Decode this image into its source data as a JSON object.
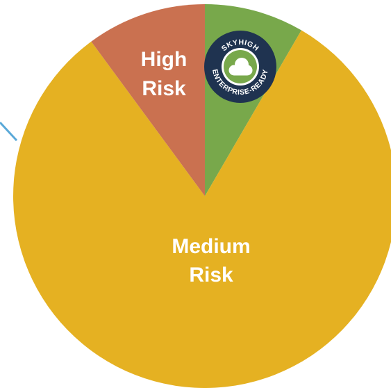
{
  "chart_data": {
    "type": "pie",
    "title": "",
    "slices": [
      {
        "key": "enterprise_ready",
        "value": 8.4,
        "color": "#78a84b"
      },
      {
        "key": "medium",
        "label_lines": [
          "Medium",
          "Risk"
        ],
        "value": 81.5,
        "color": "#e5b122"
      },
      {
        "key": "high",
        "label_lines": [
          "High",
          "Risk"
        ],
        "value": 10.1,
        "color": "#ca7150"
      }
    ]
  },
  "badge": {
    "top_text": "SKYHIGH",
    "bottom_text": "ENTERPRISE-READY",
    "ring_color": "#1f3350",
    "inner_color": "#78a84b",
    "icon": "cloud-icon"
  },
  "connector": {
    "color": "#5aa9d8"
  }
}
